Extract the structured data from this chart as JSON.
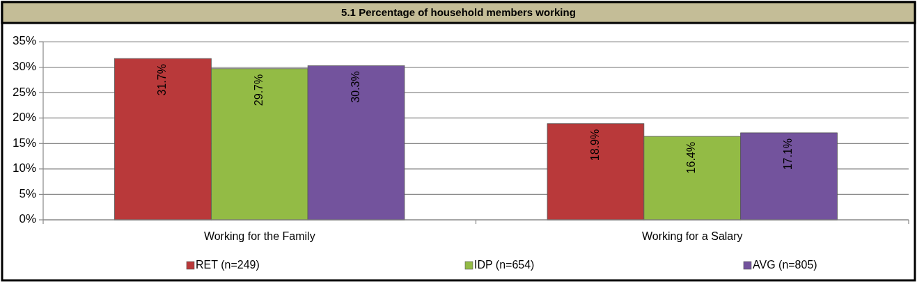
{
  "chart_data": {
    "type": "bar",
    "title": "5.1 Percentage of household members working",
    "categories": [
      "Working for the Family",
      "Working for a Salary"
    ],
    "series": [
      {
        "name": "RET (n=249)",
        "color": "#b9393a",
        "values": [
          31.7,
          18.9
        ],
        "value_labels": [
          "31.7%",
          "18.9%"
        ]
      },
      {
        "name": "IDP (n=654)",
        "color": "#93bb45",
        "values": [
          29.7,
          16.4
        ],
        "value_labels": [
          "29.7%",
          "16.4%"
        ]
      },
      {
        "name": "AVG (n=805)",
        "color": "#73539d",
        "values": [
          30.3,
          17.1
        ],
        "value_labels": [
          "30.3%",
          "17.1%"
        ]
      }
    ],
    "ylim": [
      0,
      35
    ],
    "yticks": [
      {
        "value": 0,
        "label": "0%"
      },
      {
        "value": 5,
        "label": "5%"
      },
      {
        "value": 10,
        "label": "10%"
      },
      {
        "value": 15,
        "label": "15%"
      },
      {
        "value": 20,
        "label": "20%"
      },
      {
        "value": 25,
        "label": "25%"
      },
      {
        "value": 30,
        "label": "30%"
      },
      {
        "value": 35,
        "label": "35%"
      }
    ],
    "grid": "y",
    "legend": "bottom"
  }
}
